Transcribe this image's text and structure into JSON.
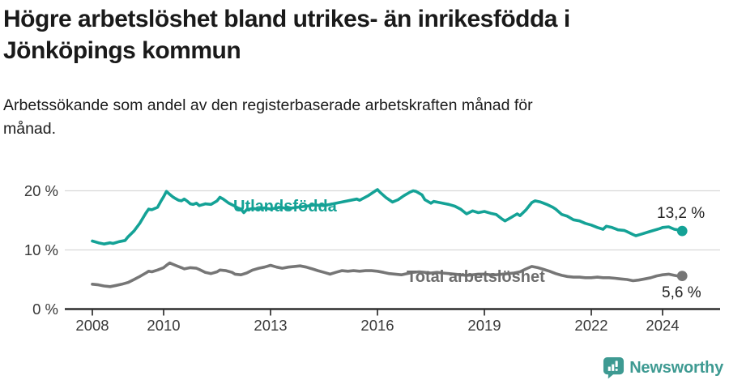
{
  "header": {
    "title_lines": [
      "Högre arbetslöshet bland utrikes- än inrikesfödda i",
      "Jönköpings kommun"
    ],
    "subtitle_lines": [
      "Arbetssökande som andel av den registerbaserade arbetskraften månad för",
      "månad."
    ]
  },
  "branding": {
    "logo_text": "Newsworthy",
    "logo_color": "#3E9A92",
    "logo_icon": "speech-bubble-bar-chart-icon"
  },
  "colors": {
    "accent_teal": "#14A296",
    "series_gray": "#767676",
    "grid": "#D8D8D8",
    "axis": "#2E2E2E",
    "text_dark": "#1A1A1A",
    "text_muted": "#383838",
    "value_label": "#222222"
  },
  "chart_data": {
    "type": "line",
    "title": "Högre arbetslöshet bland utrikes- än inrikesfödda i Jönköpings kommun",
    "subtitle": "Arbetssökande som andel av den registerbaserade arbetskraften månad för månad.",
    "grid": "horizontal",
    "legend": "inline-labels",
    "x_axis": {
      "tick_years": [
        2008,
        2010,
        2013,
        2016,
        2019,
        2022,
        2024
      ],
      "tick_labels": [
        "2008",
        "2010",
        "2013",
        "2016",
        "2019",
        "2022",
        "2024"
      ],
      "range": [
        2007.25,
        2025.1
      ]
    },
    "y_axis": {
      "ticks": [
        0,
        10,
        20
      ],
      "tick_labels": [
        "0 %",
        "10 %",
        "20 %"
      ],
      "range": [
        0,
        21.8
      ],
      "unit": "percent"
    },
    "series": [
      {
        "name": "Utlandsfödda",
        "color": "#14A296",
        "label_color": "#14A296",
        "end_label": "13,2 %",
        "end_value": 13.2,
        "points": [
          [
            2008.0,
            11.5
          ],
          [
            2008.17,
            11.2
          ],
          [
            2008.33,
            11.0
          ],
          [
            2008.5,
            11.2
          ],
          [
            2008.58,
            11.1
          ],
          [
            2008.75,
            11.4
          ],
          [
            2008.92,
            11.6
          ],
          [
            2009.0,
            12.2
          ],
          [
            2009.17,
            13.2
          ],
          [
            2009.33,
            14.5
          ],
          [
            2009.5,
            16.2
          ],
          [
            2009.58,
            16.9
          ],
          [
            2009.67,
            16.8
          ],
          [
            2009.83,
            17.2
          ],
          [
            2009.92,
            18.2
          ],
          [
            2010.0,
            19.0
          ],
          [
            2010.08,
            19.9
          ],
          [
            2010.17,
            19.4
          ],
          [
            2010.25,
            19.0
          ],
          [
            2010.33,
            18.7
          ],
          [
            2010.42,
            18.4
          ],
          [
            2010.5,
            18.3
          ],
          [
            2010.58,
            18.6
          ],
          [
            2010.67,
            18.2
          ],
          [
            2010.75,
            17.8
          ],
          [
            2010.83,
            17.7
          ],
          [
            2010.92,
            17.9
          ],
          [
            2011.0,
            17.5
          ],
          [
            2011.17,
            17.8
          ],
          [
            2011.33,
            17.7
          ],
          [
            2011.5,
            18.3
          ],
          [
            2011.58,
            18.9
          ],
          [
            2011.67,
            18.6
          ],
          [
            2011.83,
            17.9
          ],
          [
            2012.0,
            17.4
          ],
          [
            2012.08,
            17.1
          ],
          [
            2012.17,
            16.9
          ],
          [
            2012.25,
            16.3
          ],
          [
            2012.33,
            16.8
          ],
          [
            2012.5,
            17.0
          ],
          [
            2012.67,
            16.9
          ],
          [
            2012.83,
            17.1
          ],
          [
            2013.0,
            16.9
          ],
          [
            2013.25,
            17.2
          ],
          [
            2013.5,
            17.0
          ],
          [
            2013.75,
            17.2
          ],
          [
            2014.0,
            17.4
          ],
          [
            2014.25,
            17.6
          ],
          [
            2014.5,
            17.5
          ],
          [
            2014.75,
            17.8
          ],
          [
            2015.0,
            18.1
          ],
          [
            2015.25,
            18.4
          ],
          [
            2015.42,
            18.6
          ],
          [
            2015.5,
            18.4
          ],
          [
            2015.75,
            19.2
          ],
          [
            2015.92,
            19.9
          ],
          [
            2016.0,
            20.2
          ],
          [
            2016.08,
            19.7
          ],
          [
            2016.25,
            18.8
          ],
          [
            2016.42,
            18.1
          ],
          [
            2016.58,
            18.5
          ],
          [
            2016.75,
            19.2
          ],
          [
            2016.92,
            19.8
          ],
          [
            2017.0,
            20.0
          ],
          [
            2017.08,
            19.9
          ],
          [
            2017.25,
            19.3
          ],
          [
            2017.33,
            18.5
          ],
          [
            2017.5,
            17.9
          ],
          [
            2017.58,
            18.2
          ],
          [
            2017.75,
            18.0
          ],
          [
            2017.92,
            17.8
          ],
          [
            2018.0,
            17.7
          ],
          [
            2018.17,
            17.4
          ],
          [
            2018.33,
            16.9
          ],
          [
            2018.5,
            16.1
          ],
          [
            2018.67,
            16.6
          ],
          [
            2018.83,
            16.3
          ],
          [
            2019.0,
            16.5
          ],
          [
            2019.17,
            16.2
          ],
          [
            2019.33,
            16.0
          ],
          [
            2019.5,
            15.2
          ],
          [
            2019.58,
            14.9
          ],
          [
            2019.75,
            15.5
          ],
          [
            2019.92,
            16.1
          ],
          [
            2020.0,
            15.8
          ],
          [
            2020.17,
            16.8
          ],
          [
            2020.33,
            18.0
          ],
          [
            2020.42,
            18.3
          ],
          [
            2020.58,
            18.1
          ],
          [
            2020.75,
            17.7
          ],
          [
            2020.92,
            17.2
          ],
          [
            2021.0,
            16.9
          ],
          [
            2021.17,
            16.0
          ],
          [
            2021.33,
            15.7
          ],
          [
            2021.5,
            15.1
          ],
          [
            2021.67,
            14.9
          ],
          [
            2021.83,
            14.5
          ],
          [
            2022.0,
            14.2
          ],
          [
            2022.17,
            13.8
          ],
          [
            2022.33,
            13.5
          ],
          [
            2022.42,
            14.0
          ],
          [
            2022.58,
            13.8
          ],
          [
            2022.75,
            13.4
          ],
          [
            2022.92,
            13.3
          ],
          [
            2023.0,
            13.1
          ],
          [
            2023.17,
            12.6
          ],
          [
            2023.25,
            12.4
          ],
          [
            2023.42,
            12.7
          ],
          [
            2023.58,
            13.0
          ],
          [
            2023.75,
            13.3
          ],
          [
            2023.92,
            13.6
          ],
          [
            2024.0,
            13.8
          ],
          [
            2024.17,
            13.9
          ],
          [
            2024.33,
            13.5
          ],
          [
            2024.42,
            13.4
          ],
          [
            2024.55,
            13.2
          ]
        ]
      },
      {
        "name": "Total arbetslöshet",
        "color": "#767676",
        "label_color": "#6E6E6E",
        "end_label": "5,6 %",
        "end_value": 5.6,
        "points": [
          [
            2008.0,
            4.2
          ],
          [
            2008.17,
            4.1
          ],
          [
            2008.33,
            3.9
          ],
          [
            2008.5,
            3.8
          ],
          [
            2008.67,
            4.0
          ],
          [
            2008.83,
            4.2
          ],
          [
            2009.0,
            4.5
          ],
          [
            2009.17,
            5.0
          ],
          [
            2009.33,
            5.5
          ],
          [
            2009.5,
            6.1
          ],
          [
            2009.58,
            6.4
          ],
          [
            2009.67,
            6.3
          ],
          [
            2009.83,
            6.6
          ],
          [
            2010.0,
            7.0
          ],
          [
            2010.08,
            7.4
          ],
          [
            2010.17,
            7.8
          ],
          [
            2010.33,
            7.4
          ],
          [
            2010.5,
            7.0
          ],
          [
            2010.58,
            6.8
          ],
          [
            2010.75,
            7.0
          ],
          [
            2010.92,
            6.9
          ],
          [
            2011.0,
            6.7
          ],
          [
            2011.17,
            6.2
          ],
          [
            2011.33,
            6.0
          ],
          [
            2011.5,
            6.3
          ],
          [
            2011.58,
            6.6
          ],
          [
            2011.75,
            6.5
          ],
          [
            2011.92,
            6.2
          ],
          [
            2012.0,
            5.9
          ],
          [
            2012.17,
            5.8
          ],
          [
            2012.33,
            6.1
          ],
          [
            2012.5,
            6.6
          ],
          [
            2012.67,
            6.9
          ],
          [
            2012.83,
            7.1
          ],
          [
            2013.0,
            7.4
          ],
          [
            2013.17,
            7.1
          ],
          [
            2013.33,
            6.9
          ],
          [
            2013.5,
            7.1
          ],
          [
            2013.67,
            7.2
          ],
          [
            2013.83,
            7.3
          ],
          [
            2014.0,
            7.1
          ],
          [
            2014.17,
            6.8
          ],
          [
            2014.33,
            6.5
          ],
          [
            2014.5,
            6.2
          ],
          [
            2014.67,
            5.9
          ],
          [
            2014.83,
            6.2
          ],
          [
            2015.0,
            6.5
          ],
          [
            2015.17,
            6.4
          ],
          [
            2015.33,
            6.5
          ],
          [
            2015.5,
            6.4
          ],
          [
            2015.67,
            6.5
          ],
          [
            2015.83,
            6.5
          ],
          [
            2016.0,
            6.4
          ],
          [
            2016.17,
            6.2
          ],
          [
            2016.33,
            6.0
          ],
          [
            2016.5,
            5.9
          ],
          [
            2016.67,
            5.8
          ],
          [
            2016.83,
            6.0
          ],
          [
            2017.0,
            6.2
          ],
          [
            2017.17,
            6.3
          ],
          [
            2017.33,
            6.2
          ],
          [
            2017.5,
            6.1
          ],
          [
            2017.67,
            6.2
          ],
          [
            2017.83,
            6.1
          ],
          [
            2018.0,
            6.0
          ],
          [
            2018.17,
            5.9
          ],
          [
            2018.33,
            5.8
          ],
          [
            2018.5,
            5.7
          ],
          [
            2018.67,
            5.8
          ],
          [
            2018.83,
            5.9
          ],
          [
            2019.0,
            5.9
          ],
          [
            2019.17,
            5.8
          ],
          [
            2019.33,
            5.8
          ],
          [
            2019.5,
            5.9
          ],
          [
            2019.67,
            6.0
          ],
          [
            2019.83,
            6.1
          ],
          [
            2020.0,
            6.3
          ],
          [
            2020.17,
            6.8
          ],
          [
            2020.33,
            7.2
          ],
          [
            2020.5,
            7.0
          ],
          [
            2020.67,
            6.7
          ],
          [
            2020.83,
            6.4
          ],
          [
            2021.0,
            6.0
          ],
          [
            2021.17,
            5.7
          ],
          [
            2021.33,
            5.5
          ],
          [
            2021.5,
            5.4
          ],
          [
            2021.67,
            5.4
          ],
          [
            2021.83,
            5.3
          ],
          [
            2022.0,
            5.3
          ],
          [
            2022.17,
            5.4
          ],
          [
            2022.33,
            5.3
          ],
          [
            2022.5,
            5.3
          ],
          [
            2022.67,
            5.2
          ],
          [
            2022.83,
            5.1
          ],
          [
            2023.0,
            5.0
          ],
          [
            2023.17,
            4.8
          ],
          [
            2023.33,
            4.9
          ],
          [
            2023.5,
            5.1
          ],
          [
            2023.67,
            5.3
          ],
          [
            2023.83,
            5.6
          ],
          [
            2024.0,
            5.8
          ],
          [
            2024.17,
            5.9
          ],
          [
            2024.33,
            5.7
          ],
          [
            2024.42,
            5.6
          ],
          [
            2024.55,
            5.6
          ]
        ]
      }
    ]
  }
}
